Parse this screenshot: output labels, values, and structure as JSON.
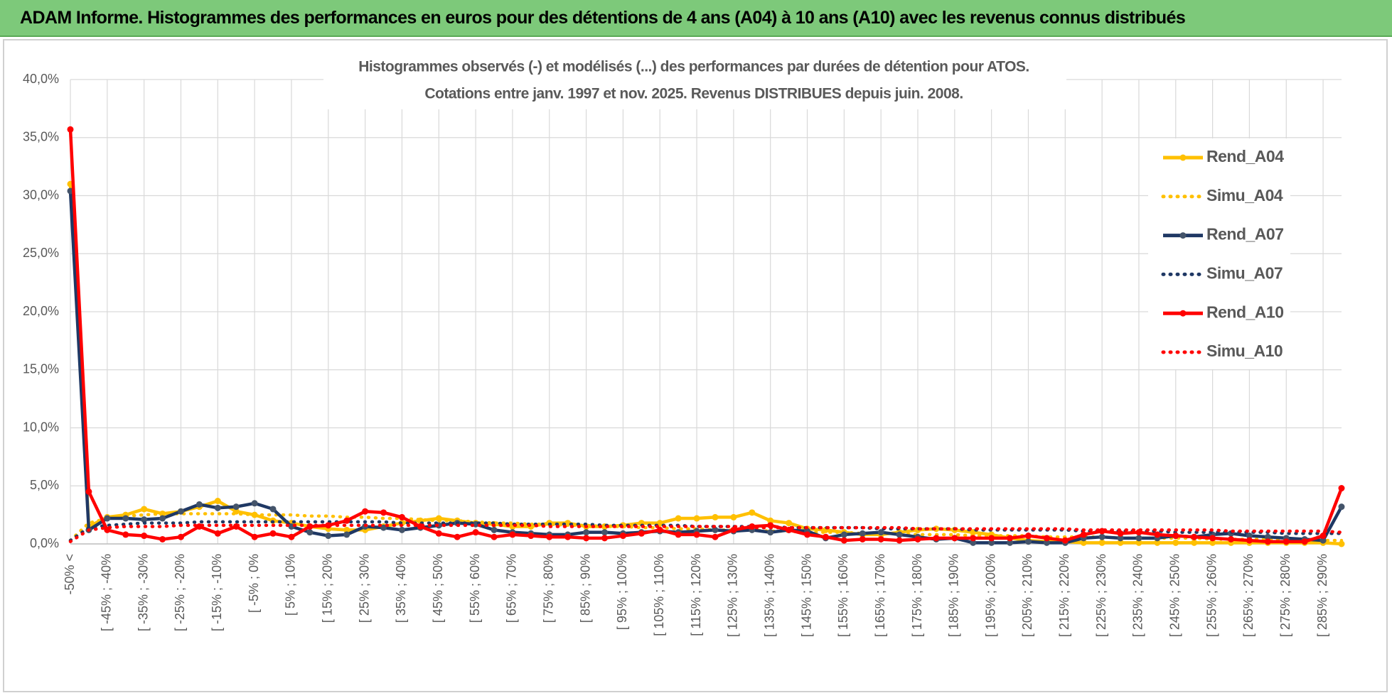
{
  "header": {
    "title": "ADAM Informe. Histogrammes des performances en euros pour des détentions de 4 ans (A04) à 10 ans (A10) avec les revenus connus distribués"
  },
  "chart_data": {
    "type": "line",
    "title": [
      "Histogrammes observés (-) et modélisés (...) des performances par durées de détention pour ATOS.",
      "Cotations entre janv. 1997 et nov. 2025. Revenus DISTRIBUES depuis juin. 2008."
    ],
    "categories": [
      "-50% <",
      null,
      "[ -45% ; -40%",
      null,
      "[ -35% ; -30%",
      null,
      "[ -25% ; -20%",
      null,
      "[ -15% ; -10%",
      null,
      "[ -5% ; 0%",
      null,
      "[ 5% ; 10%",
      null,
      "[ 15% ; 20%",
      null,
      "[ 25% ; 30%",
      null,
      "[ 35% ; 40%",
      null,
      "[ 45% ; 50%",
      null,
      "[ 55% ; 60%",
      null,
      "[ 65% ; 70%",
      null,
      "[ 75% ; 80%",
      null,
      "[ 85% ; 90%",
      null,
      "[ 95% ; 100%",
      null,
      "[ 105% ; 110%",
      null,
      "[ 115% ; 120%",
      null,
      "[ 125% ; 130%",
      null,
      "[ 135% ; 140%",
      null,
      "[ 145% ; 150%",
      null,
      "[ 155% ; 160%",
      null,
      "[ 165% ; 170%",
      null,
      "[ 175% ; 180%",
      null,
      "[ 185% ; 190%",
      null,
      "[ 195% ; 200%",
      null,
      "[ 205% ; 210%",
      null,
      "[ 215% ; 220%",
      null,
      "[ 225% ; 230%",
      null,
      "[ 235% ; 240%",
      null,
      "[ 245% ; 250%",
      null,
      "[ 255% ; 260%",
      null,
      "[ 265% ; 270%",
      null,
      "[ 275% ; 280%",
      null,
      "[ 285% ; 290%",
      null
    ],
    "series": [
      {
        "name": "Rend_A04",
        "color": "#ffc000",
        "style": "solid",
        "markers": true,
        "values": [
          31,
          1.5,
          2.3,
          2.5,
          3.0,
          2.6,
          2.8,
          3.2,
          3.7,
          2.8,
          2.5,
          2.0,
          1.8,
          1.5,
          1.3,
          1.2,
          1.2,
          1.5,
          1.8,
          2.0,
          2.2,
          2.0,
          1.8,
          1.7,
          1.5,
          1.5,
          1.8,
          1.8,
          1.5,
          1.5,
          1.6,
          1.8,
          1.8,
          2.2,
          2.2,
          2.3,
          2.3,
          2.7,
          2.0,
          1.8,
          1.3,
          1.2,
          1.0,
          0.8,
          0.8,
          1.0,
          1.2,
          1.3,
          1.2,
          1.0,
          0.8,
          0.5,
          0.3,
          0.2,
          0.2,
          0.1,
          0.1,
          0.1,
          0.1,
          0.1,
          0.1,
          0.1,
          0.1,
          0.1,
          0.1,
          0.1,
          0.1,
          0.1,
          0.1,
          0.0
        ]
      },
      {
        "name": "Simu_A04",
        "color": "#ffc000",
        "style": "dotted",
        "markers": false,
        "values": [
          0.3,
          1.8,
          2.2,
          2.4,
          2.5,
          2.6,
          2.6,
          2.6,
          2.6,
          2.6,
          2.5,
          2.5,
          2.5,
          2.4,
          2.4,
          2.3,
          2.3,
          2.2,
          2.2,
          2.1,
          2.0,
          2.0,
          1.9,
          1.8,
          1.8,
          1.7,
          1.7,
          1.6,
          1.6,
          1.5,
          1.5,
          1.4,
          1.4,
          1.3,
          1.3,
          1.2,
          1.2,
          1.2,
          1.1,
          1.1,
          1.0,
          1.0,
          1.0,
          0.9,
          0.9,
          0.9,
          0.8,
          0.8,
          0.8,
          0.7,
          0.7,
          0.7,
          0.7,
          0.6,
          0.6,
          0.6,
          0.6,
          0.5,
          0.5,
          0.5,
          0.5,
          0.5,
          0.4,
          0.4,
          0.4,
          0.4,
          0.4,
          0.3,
          0.3,
          0.3
        ]
      },
      {
        "name": "Rend_A07",
        "color": "#1f3864",
        "marker_color": "#44546a",
        "style": "solid",
        "markers": true,
        "values": [
          30.4,
          1.2,
          2.2,
          2.2,
          2.1,
          2.2,
          2.8,
          3.4,
          3.1,
          3.2,
          3.5,
          3.0,
          1.5,
          1.0,
          0.7,
          0.8,
          1.5,
          1.4,
          1.2,
          1.4,
          1.6,
          1.8,
          1.7,
          1.2,
          1.0,
          0.9,
          0.8,
          0.8,
          1.0,
          1.0,
          0.9,
          1.0,
          1.1,
          1.0,
          1.1,
          1.2,
          1.1,
          1.2,
          1.0,
          1.2,
          1.1,
          0.5,
          0.8,
          0.9,
          1.0,
          0.8,
          0.6,
          0.4,
          0.5,
          0.1,
          0.1,
          0.1,
          0.2,
          0.1,
          0.1,
          0.5,
          0.6,
          0.5,
          0.5,
          0.5,
          0.7,
          0.6,
          0.8,
          0.9,
          0.7,
          0.6,
          0.5,
          0.4,
          0.3,
          3.2
        ]
      },
      {
        "name": "Simu_A07",
        "color": "#1f3864",
        "style": "dotted",
        "markers": false,
        "values": [
          0.3,
          1.4,
          1.6,
          1.7,
          1.8,
          1.8,
          1.8,
          1.9,
          1.9,
          1.9,
          1.9,
          1.9,
          1.9,
          1.9,
          1.9,
          1.9,
          1.9,
          1.9,
          1.8,
          1.8,
          1.8,
          1.8,
          1.8,
          1.8,
          1.7,
          1.7,
          1.7,
          1.7,
          1.7,
          1.6,
          1.6,
          1.6,
          1.6,
          1.6,
          1.5,
          1.5,
          1.5,
          1.5,
          1.5,
          1.4,
          1.4,
          1.4,
          1.4,
          1.4,
          1.3,
          1.3,
          1.3,
          1.3,
          1.3,
          1.2,
          1.2,
          1.2,
          1.2,
          1.2,
          1.2,
          1.1,
          1.1,
          1.1,
          1.1,
          1.1,
          1.0,
          1.0,
          1.0,
          1.0,
          1.0,
          1.0,
          0.9,
          0.9,
          0.9,
          0.9
        ]
      },
      {
        "name": "Rend_A10",
        "color": "#ff0000",
        "style": "solid",
        "markers": true,
        "values": [
          35.7,
          4.5,
          1.2,
          0.8,
          0.7,
          0.4,
          0.6,
          1.5,
          0.9,
          1.5,
          0.6,
          0.9,
          0.6,
          1.5,
          1.6,
          2.0,
          2.8,
          2.7,
          2.3,
          1.5,
          0.9,
          0.6,
          1.0,
          0.6,
          0.8,
          0.7,
          0.6,
          0.6,
          0.5,
          0.5,
          0.7,
          0.9,
          1.2,
          0.8,
          0.8,
          0.6,
          1.2,
          1.5,
          1.6,
          1.2,
          0.8,
          0.6,
          0.3,
          0.4,
          0.4,
          0.3,
          0.4,
          0.5,
          0.5,
          0.5,
          0.5,
          0.5,
          0.7,
          0.5,
          0.3,
          0.8,
          1.1,
          0.9,
          1.0,
          0.8,
          0.7,
          0.6,
          0.5,
          0.4,
          0.3,
          0.2,
          0.2,
          0.2,
          0.7,
          4.8
        ]
      },
      {
        "name": "Simu_A10",
        "color": "#ff0000",
        "style": "dotted",
        "markers": false,
        "values": [
          0.2,
          1.2,
          1.4,
          1.5,
          1.5,
          1.5,
          1.6,
          1.6,
          1.6,
          1.6,
          1.6,
          1.6,
          1.6,
          1.6,
          1.6,
          1.6,
          1.6,
          1.6,
          1.6,
          1.6,
          1.6,
          1.6,
          1.6,
          1.6,
          1.6,
          1.6,
          1.5,
          1.5,
          1.5,
          1.5,
          1.5,
          1.5,
          1.5,
          1.5,
          1.5,
          1.5,
          1.5,
          1.4,
          1.4,
          1.4,
          1.4,
          1.4,
          1.4,
          1.4,
          1.4,
          1.4,
          1.3,
          1.3,
          1.3,
          1.3,
          1.3,
          1.3,
          1.3,
          1.3,
          1.3,
          1.2,
          1.2,
          1.2,
          1.2,
          1.2,
          1.2,
          1.2,
          1.2,
          1.1,
          1.1,
          1.1,
          1.1,
          1.1,
          1.1,
          1.0
        ]
      }
    ],
    "ylim": [
      0,
      40
    ],
    "yticks": [
      {
        "value": 0,
        "label": "0,0%"
      },
      {
        "value": 5,
        "label": "5,0%"
      },
      {
        "value": 10,
        "label": "10,0%"
      },
      {
        "value": 15,
        "label": "15,0%"
      },
      {
        "value": 20,
        "label": "20,0%"
      },
      {
        "value": 25,
        "label": "25,0%"
      },
      {
        "value": 30,
        "label": "30,0%"
      },
      {
        "value": 35,
        "label": "35,0%"
      },
      {
        "value": 40,
        "label": "40,0%"
      }
    ],
    "grid": true,
    "legend": "right"
  }
}
